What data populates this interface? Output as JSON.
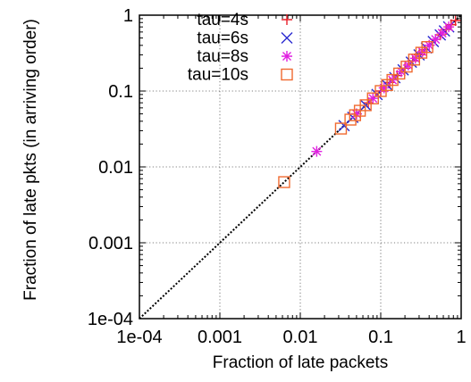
{
  "chart_data": {
    "type": "scatter",
    "xscale": "log",
    "yscale": "log",
    "xlim": [
      0.0001,
      1
    ],
    "ylim": [
      0.0001,
      1
    ],
    "xlabel": "Fraction of late packets",
    "ylabel": "Fraction of late pkts (in arriving order)",
    "xticks": [
      "1e-04",
      "0.001",
      "0.01",
      "0.1",
      "1"
    ],
    "yticks": [
      "1e-04",
      "0.001",
      "0.01",
      "0.1",
      "1"
    ],
    "grid": true,
    "legend_position": "top-left",
    "reference_line": {
      "style": "dotted",
      "x": [
        0.0001,
        1
      ],
      "y": [
        0.0001,
        1
      ]
    },
    "series": [
      {
        "name": "tau=4s",
        "marker": "plus",
        "color": "#e8202a",
        "points": [
          [
            0.05,
            0.05
          ],
          [
            0.07,
            0.07
          ],
          [
            0.1,
            0.1
          ],
          [
            0.13,
            0.13
          ],
          [
            0.16,
            0.16
          ],
          [
            0.2,
            0.2
          ],
          [
            0.25,
            0.25
          ],
          [
            0.3,
            0.3
          ],
          [
            0.35,
            0.35
          ],
          [
            0.4,
            0.4
          ],
          [
            0.48,
            0.48
          ],
          [
            0.55,
            0.55
          ],
          [
            0.65,
            0.65
          ],
          [
            0.75,
            0.75
          ],
          [
            0.85,
            0.85
          ]
        ]
      },
      {
        "name": "tau=6s",
        "marker": "x",
        "color": "#2a2ad0",
        "points": [
          [
            0.035,
            0.035
          ],
          [
            0.045,
            0.045
          ],
          [
            0.065,
            0.065
          ],
          [
            0.09,
            0.09
          ],
          [
            0.12,
            0.12
          ],
          [
            0.15,
            0.15
          ],
          [
            0.19,
            0.19
          ],
          [
            0.24,
            0.24
          ],
          [
            0.3,
            0.3
          ],
          [
            0.37,
            0.37
          ],
          [
            0.45,
            0.45
          ],
          [
            0.55,
            0.55
          ],
          [
            0.62,
            0.62
          ],
          [
            0.7,
            0.7
          ]
        ]
      },
      {
        "name": "tau=8s",
        "marker": "star",
        "color": "#e020e0",
        "points": [
          [
            0.016,
            0.016
          ],
          [
            0.05,
            0.05
          ],
          [
            0.08,
            0.08
          ],
          [
            0.11,
            0.11
          ],
          [
            0.14,
            0.14
          ],
          [
            0.18,
            0.18
          ],
          [
            0.22,
            0.22
          ],
          [
            0.27,
            0.27
          ],
          [
            0.33,
            0.33
          ],
          [
            0.4,
            0.4
          ],
          [
            0.48,
            0.48
          ],
          [
            0.58,
            0.58
          ],
          [
            0.7,
            0.7
          ]
        ]
      },
      {
        "name": "tau=10s",
        "marker": "square",
        "color": "#f06a30",
        "points": [
          [
            0.0063,
            0.0063
          ],
          [
            0.032,
            0.032
          ],
          [
            0.042,
            0.042
          ],
          [
            0.048,
            0.048
          ],
          [
            0.055,
            0.055
          ],
          [
            0.065,
            0.065
          ],
          [
            0.08,
            0.08
          ],
          [
            0.1,
            0.1
          ],
          [
            0.12,
            0.12
          ],
          [
            0.14,
            0.14
          ],
          [
            0.17,
            0.17
          ],
          [
            0.21,
            0.21
          ],
          [
            0.26,
            0.26
          ],
          [
            0.32,
            0.32
          ],
          [
            0.38,
            0.38
          ]
        ]
      }
    ]
  }
}
